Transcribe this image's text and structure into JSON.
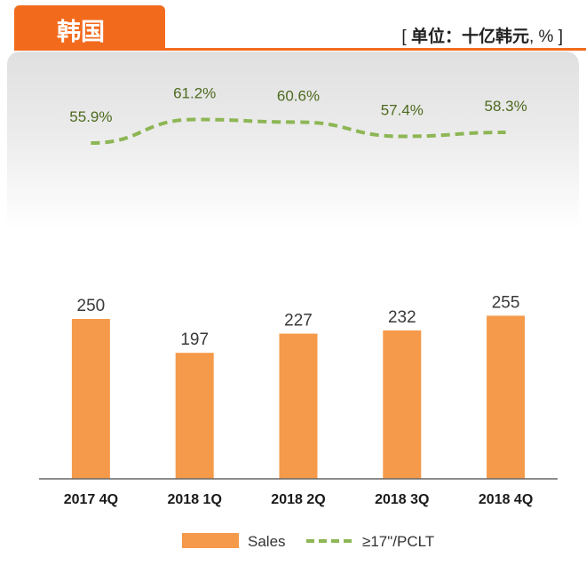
{
  "header": {
    "region": "韩国",
    "unit_prefix": "[ ",
    "unit_main": "单位：十亿韩元",
    "unit_suffix": ", % ]"
  },
  "colors": {
    "bar": "#f59a4a",
    "line": "#8db654",
    "label_green": "#4d6a1e",
    "accent": "#f26b1d"
  },
  "chart_data": {
    "type": "bar",
    "categories": [
      "2017 4Q",
      "2018 1Q",
      "2018 2Q",
      "2018 3Q",
      "2018 4Q"
    ],
    "ylim": [
      0,
      300
    ],
    "grid": false,
    "legend_position": "bottom",
    "series": [
      {
        "name": "Sales",
        "type": "bar",
        "values": [
          250,
          197,
          227,
          232,
          255
        ]
      },
      {
        "name": "≥17\"/PCLT",
        "type": "line",
        "style": "dashed",
        "values": [
          55.9,
          61.2,
          60.6,
          57.4,
          58.3
        ],
        "labels": [
          "55.9%",
          "61.2%",
          "60.6%",
          "57.4%",
          "58.3%"
        ]
      }
    ]
  }
}
